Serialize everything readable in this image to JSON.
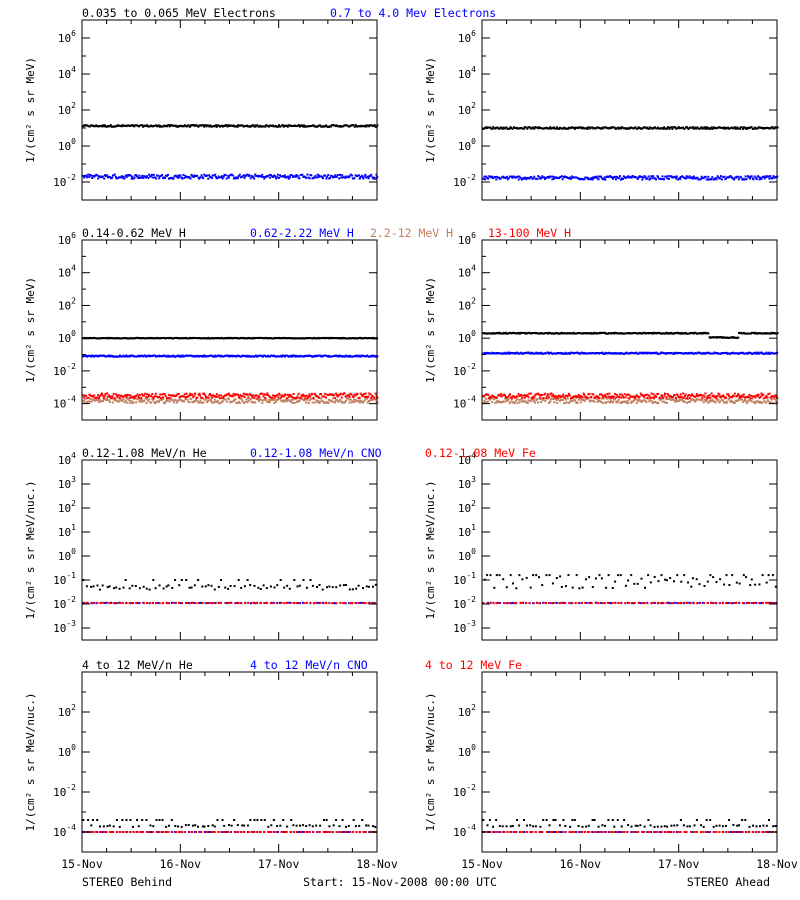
{
  "figure": {
    "start_label": "Start: 15-Nov-2008 00:00 UTC",
    "left_label": "STEREO Behind",
    "right_label": "STEREO Ahead",
    "x_tick_labels": [
      "15-Nov",
      "16-Nov",
      "17-Nov",
      "18-Nov"
    ]
  },
  "colors": {
    "black": "#000000",
    "blue": "#0000ff",
    "brown": "#c08060",
    "red": "#ff0000"
  },
  "rows": [
    {
      "legend": [
        {
          "text": "0.035 to 0.065 MeV Electrons",
          "color": "black"
        },
        {
          "text": "0.7 to 4.0 Mev Electrons",
          "color": "blue"
        }
      ],
      "ylabel": "1/(cm² s sr MeV)",
      "ylim_exp": [
        -3,
        7
      ],
      "y_tick_exps": [
        -2,
        0,
        2,
        4,
        6
      ]
    },
    {
      "legend": [
        {
          "text": "0.14-0.62 MeV H",
          "color": "black"
        },
        {
          "text": "0.62-2.22 MeV H",
          "color": "blue"
        },
        {
          "text": "2.2-12 MeV H",
          "color": "brown"
        },
        {
          "text": "13-100 MeV H",
          "color": "red"
        }
      ],
      "ylabel": "1/(cm² s sr MeV)",
      "ylim_exp": [
        -5,
        6
      ],
      "y_tick_exps": [
        -4,
        -2,
        0,
        2,
        4,
        6
      ]
    },
    {
      "legend": [
        {
          "text": "0.12-1.08 MeV/n He",
          "color": "black"
        },
        {
          "text": "0.12-1.08 MeV/n CNO",
          "color": "blue"
        },
        {
          "text": "0.12-1.08 MeV Fe",
          "color": "red"
        }
      ],
      "ylabel": "1/(cm² s sr MeV/nuc.)",
      "ylim_exp": [
        -3.5,
        4
      ],
      "y_tick_exps": [
        -3,
        -2,
        -1,
        0,
        1,
        2,
        3,
        4
      ]
    },
    {
      "legend": [
        {
          "text": "4 to 12 MeV/n He",
          "color": "black"
        },
        {
          "text": "4 to 12 MeV/n CNO",
          "color": "blue"
        },
        {
          "text": "4 to 12 MeV Fe",
          "color": "red"
        }
      ],
      "ylabel": "1/(cm² s sr MeV/nuc.)",
      "ylim_exp": [
        -5,
        4
      ],
      "y_tick_exps": [
        -4,
        -2,
        0,
        2
      ]
    }
  ],
  "chart_data": [
    {
      "type": "scatter",
      "panel": "electrons-behind",
      "y_scale": "log",
      "x_range_days": [
        0,
        3
      ],
      "ylim": [
        0.001,
        10000000.0
      ],
      "series": [
        {
          "name": "0.035 to 0.065 MeV Electrons",
          "color": "black",
          "level": 13,
          "spread": 0.05
        },
        {
          "name": "0.7 to 4.0 Mev Electrons",
          "color": "blue",
          "level": 0.02,
          "spread": 0.12
        }
      ]
    },
    {
      "type": "scatter",
      "panel": "electrons-ahead",
      "y_scale": "log",
      "x_range_days": [
        0,
        3
      ],
      "ylim": [
        0.001,
        10000000.0
      ],
      "series": [
        {
          "name": "0.035 to 0.065 MeV Electrons",
          "color": "black",
          "level": 10,
          "spread": 0.05
        },
        {
          "name": "0.7 to 4.0 Mev Electrons",
          "color": "blue",
          "level": 0.017,
          "spread": 0.1
        }
      ]
    },
    {
      "type": "scatter",
      "panel": "protons-behind",
      "y_scale": "log",
      "x_range_days": [
        0,
        3
      ],
      "ylim": [
        1e-05,
        1000000.0
      ],
      "series": [
        {
          "name": "0.14-0.62 MeV H",
          "color": "black",
          "level": 1.0,
          "spread": 0.02
        },
        {
          "name": "0.62-2.22 MeV H",
          "color": "blue",
          "level": 0.08,
          "spread": 0.04
        },
        {
          "name": "2.2-12 MeV H",
          "color": "brown",
          "level": 0.00015,
          "spread": 0.15
        },
        {
          "name": "13-100 MeV H",
          "color": "red",
          "level": 0.0003,
          "spread": 0.15
        }
      ]
    },
    {
      "type": "scatter",
      "panel": "protons-ahead",
      "y_scale": "log",
      "x_range_days": [
        0,
        3
      ],
      "ylim": [
        1e-05,
        1000000.0
      ],
      "series": [
        {
          "name": "0.14-0.62 MeV H",
          "color": "black",
          "level": 2.0,
          "spread": 0.03
        },
        {
          "name": "0.62-2.22 MeV H",
          "color": "blue",
          "level": 0.12,
          "spread": 0.04
        },
        {
          "name": "2.2-12 MeV H",
          "color": "brown",
          "level": 0.00015,
          "spread": 0.15
        },
        {
          "name": "13-100 MeV H",
          "color": "red",
          "level": 0.0003,
          "spread": 0.15
        }
      ]
    },
    {
      "type": "scatter",
      "panel": "heavy-low-behind",
      "y_scale": "log",
      "x_range_days": [
        0,
        3
      ],
      "ylim": [
        0.000316,
        10000.0
      ],
      "series": [
        {
          "name": "0.12-1.08 MeV/n He",
          "color": "black",
          "level": 0.05,
          "spread": 0.1
        },
        {
          "name": "0.12-1.08 MeV/n CNO",
          "color": "blue",
          "level": 0.011,
          "spread": 0.01
        },
        {
          "name": "0.12-1.08 MeV Fe",
          "color": "red",
          "level": 0.011,
          "spread": 0.01
        }
      ]
    },
    {
      "type": "scatter",
      "panel": "heavy-low-ahead",
      "y_scale": "log",
      "x_range_days": [
        0,
        3
      ],
      "ylim": [
        0.000316,
        10000.0
      ],
      "series": [
        {
          "name": "0.12-1.08 MeV/n He",
          "color": "black",
          "level": 0.08,
          "spread": 0.25
        },
        {
          "name": "0.12-1.08 MeV/n CNO",
          "color": "blue",
          "level": 0.011,
          "spread": 0.01
        },
        {
          "name": "0.12-1.08 MeV Fe",
          "color": "red",
          "level": 0.011,
          "spread": 0.01
        }
      ]
    },
    {
      "type": "scatter",
      "panel": "heavy-high-behind",
      "y_scale": "log",
      "x_range_days": [
        0,
        3
      ],
      "ylim": [
        1e-05,
        10000.0
      ],
      "series": [
        {
          "name": "4 to 12 MeV/n He",
          "color": "black",
          "level": 0.0002,
          "spread": 0.05
        },
        {
          "name": "4 to 12 MeV/n CNO",
          "color": "blue",
          "level": 0.0001,
          "spread": 0.0
        },
        {
          "name": "4 to 12 MeV Fe",
          "color": "red",
          "level": 0.0001,
          "spread": 0.0
        }
      ]
    },
    {
      "type": "scatter",
      "panel": "heavy-high-ahead",
      "y_scale": "log",
      "x_range_days": [
        0,
        3
      ],
      "ylim": [
        1e-05,
        10000.0
      ],
      "series": [
        {
          "name": "4 to 12 MeV/n He",
          "color": "black",
          "level": 0.0002,
          "spread": 0.05
        },
        {
          "name": "4 to 12 MeV/n CNO",
          "color": "blue",
          "level": 0.0001,
          "spread": 0.0
        },
        {
          "name": "4 to 12 MeV Fe",
          "color": "red",
          "level": 0.0001,
          "spread": 0.0
        }
      ]
    }
  ]
}
